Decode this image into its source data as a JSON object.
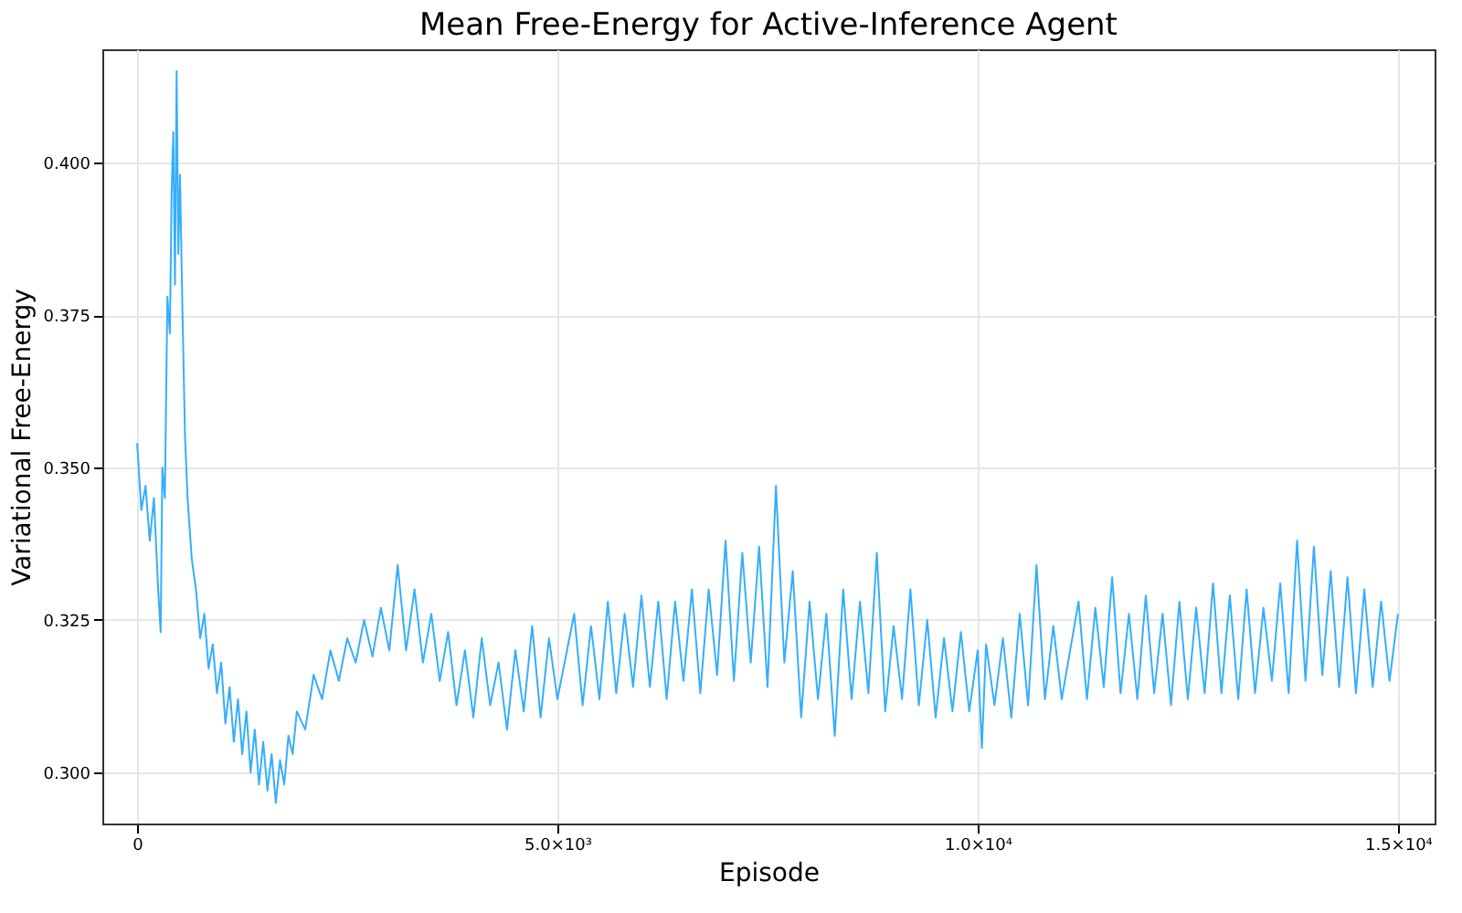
{
  "chart_data": {
    "type": "line",
    "title": "Mean Free-Energy for Active-Inference Agent",
    "xlabel": "Episode",
    "ylabel": "Variational Free-Energy",
    "xlim": [
      -414,
      15436
    ],
    "ylim": [
      0.2916,
      0.4186
    ],
    "xticks": [
      0,
      {
        "value": 5000,
        "label": "5.0×10³"
      },
      {
        "value": 10000,
        "label": "1.0×10⁴"
      },
      {
        "value": 15000,
        "label": "1.5×10⁴"
      }
    ],
    "yticks": [
      {
        "value": 0.3,
        "label": "0.300"
      },
      0.325,
      {
        "value": 0.35,
        "label": "0.350"
      },
      0.375,
      {
        "value": 0.4,
        "label": "0.400"
      }
    ],
    "grid": true,
    "line_style": "solid",
    "marker": "none",
    "x": [
      0,
      50,
      100,
      150,
      200,
      250,
      280,
      300,
      330,
      360,
      390,
      410,
      430,
      450,
      470,
      490,
      510,
      540,
      570,
      600,
      650,
      700,
      750,
      800,
      850,
      900,
      950,
      1000,
      1050,
      1100,
      1150,
      1200,
      1250,
      1300,
      1350,
      1400,
      1450,
      1500,
      1550,
      1600,
      1650,
      1700,
      1750,
      1800,
      1850,
      1900,
      2000,
      2100,
      2200,
      2300,
      2400,
      2500,
      2600,
      2700,
      2800,
      2900,
      3000,
      3100,
      3200,
      3300,
      3400,
      3500,
      3600,
      3700,
      3800,
      3900,
      4000,
      4100,
      4200,
      4300,
      4400,
      4500,
      4600,
      4700,
      4800,
      4900,
      5000,
      5200,
      5300,
      5400,
      5500,
      5600,
      5700,
      5800,
      5900,
      6000,
      6100,
      6200,
      6300,
      6400,
      6500,
      6600,
      6700,
      6800,
      6900,
      7000,
      7100,
      7200,
      7300,
      7400,
      7500,
      7600,
      7700,
      7800,
      7900,
      8000,
      8100,
      8200,
      8300,
      8400,
      8500,
      8600,
      8700,
      8800,
      8900,
      9000,
      9100,
      9200,
      9300,
      9400,
      9500,
      9600,
      9700,
      9800,
      9900,
      10000,
      10050,
      10100,
      10200,
      10300,
      10400,
      10500,
      10600,
      10700,
      10800,
      10900,
      11000,
      11200,
      11300,
      11400,
      11500,
      11600,
      11700,
      11800,
      11900,
      12000,
      12100,
      12200,
      12300,
      12400,
      12500,
      12600,
      12700,
      12800,
      12900,
      13000,
      13100,
      13200,
      13300,
      13400,
      13500,
      13600,
      13700,
      13800,
      13900,
      14000,
      14100,
      14200,
      14300,
      14400,
      14500,
      14600,
      14700,
      14800,
      14900,
      15000
    ],
    "series": [
      {
        "color": "#35aefd",
        "values": [
          0.354,
          0.343,
          0.347,
          0.338,
          0.345,
          0.33,
          0.323,
          0.35,
          0.345,
          0.378,
          0.372,
          0.395,
          0.405,
          0.38,
          0.415,
          0.385,
          0.398,
          0.375,
          0.355,
          0.345,
          0.335,
          0.33,
          0.322,
          0.326,
          0.317,
          0.321,
          0.313,
          0.318,
          0.308,
          0.314,
          0.305,
          0.312,
          0.303,
          0.31,
          0.3,
          0.307,
          0.298,
          0.305,
          0.297,
          0.303,
          0.295,
          0.302,
          0.298,
          0.306,
          0.303,
          0.31,
          0.307,
          0.316,
          0.312,
          0.32,
          0.315,
          0.322,
          0.318,
          0.325,
          0.319,
          0.327,
          0.32,
          0.334,
          0.32,
          0.33,
          0.318,
          0.326,
          0.315,
          0.323,
          0.311,
          0.32,
          0.309,
          0.322,
          0.311,
          0.318,
          0.307,
          0.32,
          0.31,
          0.324,
          0.309,
          0.322,
          0.312,
          0.326,
          0.311,
          0.324,
          0.312,
          0.328,
          0.313,
          0.326,
          0.314,
          0.329,
          0.314,
          0.328,
          0.312,
          0.328,
          0.315,
          0.33,
          0.313,
          0.33,
          0.316,
          0.338,
          0.315,
          0.336,
          0.318,
          0.337,
          0.314,
          0.347,
          0.318,
          0.333,
          0.309,
          0.328,
          0.312,
          0.326,
          0.306,
          0.33,
          0.312,
          0.328,
          0.313,
          0.336,
          0.31,
          0.324,
          0.312,
          0.33,
          0.311,
          0.325,
          0.309,
          0.322,
          0.31,
          0.323,
          0.31,
          0.32,
          0.304,
          0.321,
          0.311,
          0.322,
          0.309,
          0.326,
          0.311,
          0.334,
          0.312,
          0.324,
          0.312,
          0.328,
          0.312,
          0.327,
          0.314,
          0.332,
          0.313,
          0.326,
          0.312,
          0.329,
          0.313,
          0.326,
          0.311,
          0.328,
          0.312,
          0.327,
          0.313,
          0.331,
          0.313,
          0.329,
          0.312,
          0.33,
          0.313,
          0.327,
          0.315,
          0.331,
          0.313,
          0.338,
          0.315,
          0.337,
          0.316,
          0.333,
          0.314,
          0.332,
          0.313,
          0.33,
          0.314,
          0.328,
          0.315,
          0.326
        ]
      }
    ]
  }
}
